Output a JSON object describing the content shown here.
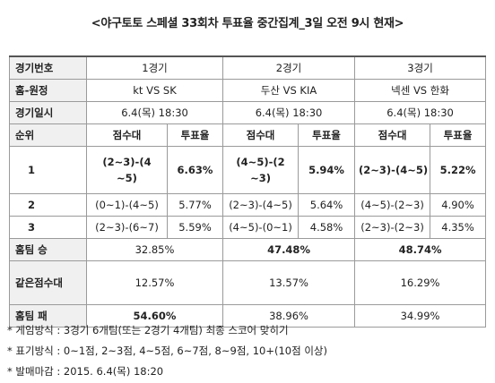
{
  "title": "<야구토토 스페셜 33회차 투표율 중간집계_3일 오전 9시 현재>",
  "row_labels": {
    "game_no": "경기번호",
    "matchup": "홈-원정",
    "datetime": "경기일시",
    "rank": "순위",
    "home_win": "홈팀 승",
    "tie": "같은점수대",
    "home_loss": "홈팀 패"
  },
  "sub_headers": {
    "score": "점수대",
    "vote": "투표율"
  },
  "games": [
    {
      "no": "1경기",
      "matchup": "kt VS SK",
      "datetime": "6.4(목) 18:30"
    },
    {
      "no": "2경기",
      "matchup": "두산 VS KIA",
      "datetime": "6.4(목) 18:30"
    },
    {
      "no": "3경기",
      "matchup": "넥센 VS 한화",
      "datetime": "6.4(목) 18:30"
    }
  ],
  "ranks": [
    {
      "rank": "1",
      "cells": [
        {
          "score": "(2~3)-(4~5)",
          "vote": "6.63%"
        },
        {
          "score": "(4~5)-(2~3)",
          "vote": "5.94%"
        },
        {
          "score": "(2~3)-(4~5)",
          "vote": "5.22%"
        }
      ]
    },
    {
      "rank": "2",
      "cells": [
        {
          "score": "(0~1)-(4~5)",
          "vote": "5.77%"
        },
        {
          "score": "(2~3)-(4~5)",
          "vote": "5.64%"
        },
        {
          "score": "(4~5)-(2~3)",
          "vote": "4.90%"
        }
      ]
    },
    {
      "rank": "3",
      "cells": [
        {
          "score": "(2~3)-(6~7)",
          "vote": "5.59%"
        },
        {
          "score": "(4~5)-(0~1)",
          "vote": "4.58%"
        },
        {
          "score": "(2~3)-(2~3)",
          "vote": "4.35%"
        }
      ]
    }
  ],
  "home_win": [
    "32.85%",
    "47.48%",
    "48.74%"
  ],
  "tie": [
    "12.57%",
    "13.57%",
    "16.29%"
  ],
  "home_loss": [
    "54.60%",
    "38.96%",
    "34.99%"
  ],
  "notes": [
    "* 게임방식 : 3경기 6개팀(또는 2경기 4개팀) 최종 스코어 맞히기",
    "* 표기방식 : 0~1점, 2~3점, 4~5점, 6~7점, 8~9점, 10+(10점 이상)",
    "* 발매마감 : 2015. 6.4(목) 18:20"
  ]
}
